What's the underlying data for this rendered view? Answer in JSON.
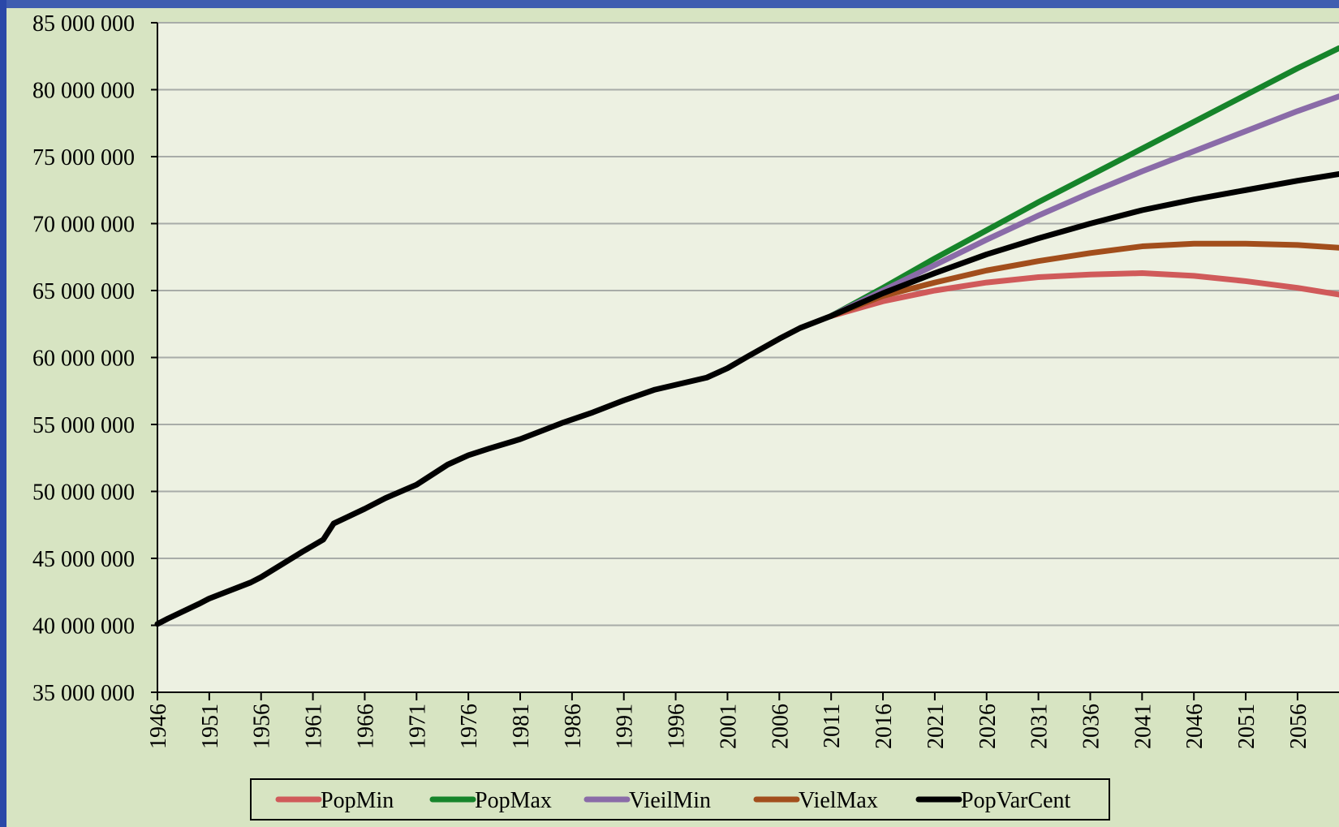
{
  "chart_data": {
    "type": "line",
    "xlim": [
      1946,
      2060
    ],
    "xticks": [
      1946,
      1951,
      1956,
      1961,
      1966,
      1971,
      1976,
      1981,
      1986,
      1991,
      1996,
      2001,
      2006,
      2011,
      2016,
      2021,
      2026,
      2031,
      2036,
      2041,
      2046,
      2051,
      2056
    ],
    "ylim": [
      35000000,
      85000000
    ],
    "yticks": [
      {
        "value": 35000000,
        "label": "35 000 000"
      },
      {
        "value": 40000000,
        "label": "40 000 000"
      },
      {
        "value": 45000000,
        "label": "45 000 000"
      },
      {
        "value": 50000000,
        "label": "50 000 000"
      },
      {
        "value": 55000000,
        "label": "55 000 000"
      },
      {
        "value": 60000000,
        "label": "60 000 000"
      },
      {
        "value": 65000000,
        "label": "65 000 000"
      },
      {
        "value": 70000000,
        "label": "70 000 000"
      },
      {
        "value": 75000000,
        "label": "75 000 000"
      },
      {
        "value": 80000000,
        "label": "80 000 000"
      },
      {
        "value": 85000000,
        "label": "85 000 000"
      }
    ],
    "grid": true,
    "legend": "bottom",
    "series": [
      {
        "name": "PopMin",
        "color": "#d05a5a",
        "x": [
          2011,
          2016,
          2021,
          2026,
          2031,
          2036,
          2041,
          2046,
          2051,
          2056,
          2060
        ],
        "values": [
          63100000,
          64200000,
          65000000,
          65600000,
          66000000,
          66200000,
          66300000,
          66100000,
          65700000,
          65200000,
          64700000
        ]
      },
      {
        "name": "PopMax",
        "color": "#16842a",
        "x": [
          2011,
          2016,
          2021,
          2026,
          2031,
          2036,
          2041,
          2046,
          2051,
          2056,
          2060
        ],
        "values": [
          63100000,
          65200000,
          67400000,
          69500000,
          71600000,
          73600000,
          75600000,
          77600000,
          79600000,
          81600000,
          83100000
        ]
      },
      {
        "name": "VieilMin",
        "color": "#8a6ba8",
        "x": [
          2011,
          2016,
          2021,
          2026,
          2031,
          2036,
          2041,
          2046,
          2051,
          2056,
          2060
        ],
        "values": [
          63100000,
          65000000,
          66900000,
          68800000,
          70600000,
          72300000,
          73900000,
          75400000,
          76900000,
          78400000,
          79500000
        ]
      },
      {
        "name": "VielMax",
        "color": "#a24e1c",
        "x": [
          2011,
          2016,
          2021,
          2026,
          2031,
          2036,
          2041,
          2046,
          2051,
          2056,
          2060
        ],
        "values": [
          63100000,
          64600000,
          65600000,
          66500000,
          67200000,
          67800000,
          68300000,
          68500000,
          68500000,
          68400000,
          68200000
        ]
      },
      {
        "name": "PopVarCent",
        "color": "#000000",
        "x": [
          1946,
          1947,
          1950,
          1951,
          1955,
          1956,
          1960,
          1962,
          1963,
          1966,
          1968,
          1971,
          1974,
          1976,
          1978,
          1981,
          1985,
          1988,
          1991,
          1994,
          1999,
          2001,
          2003,
          2006,
          2008,
          2011,
          2016,
          2021,
          2026,
          2031,
          2036,
          2041,
          2046,
          2051,
          2056,
          2060
        ],
        "values": [
          40100000,
          40500000,
          41600000,
          42000000,
          43200000,
          43600000,
          45500000,
          46400000,
          47600000,
          48700000,
          49500000,
          50500000,
          52000000,
          52700000,
          53200000,
          53900000,
          55100000,
          55900000,
          56800000,
          57600000,
          58500000,
          59200000,
          60100000,
          61400000,
          62200000,
          63100000,
          64800000,
          66300000,
          67700000,
          68900000,
          70000000,
          71000000,
          71800000,
          72500000,
          73200000,
          73700000
        ]
      }
    ]
  }
}
